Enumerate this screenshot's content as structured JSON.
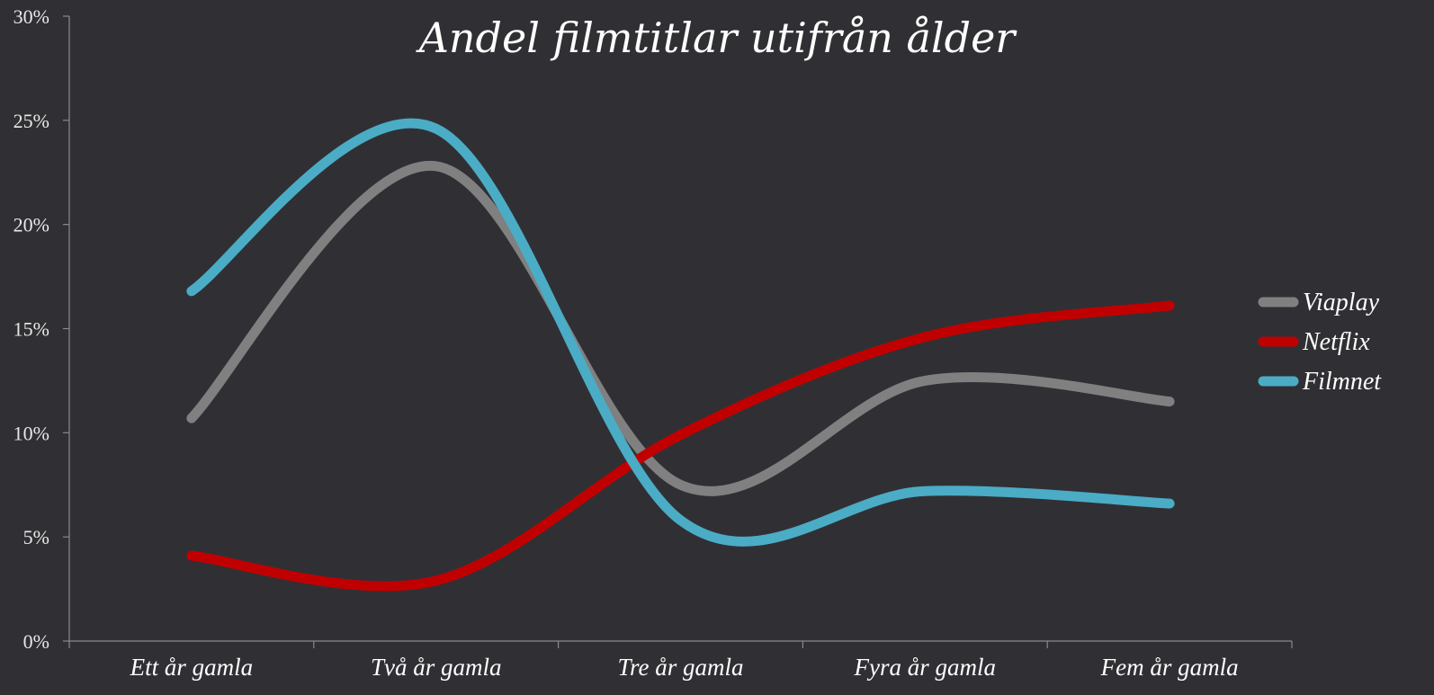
{
  "chart_data": {
    "type": "line",
    "title": "Andel filmtitlar utifrån ålder",
    "xlabel": "",
    "ylabel": "",
    "categories": [
      "Ett år gamla",
      "Två år gamla",
      "Tre år gamla",
      "Fyra år gamla",
      "Fem år gamla"
    ],
    "ylim": [
      0,
      30
    ],
    "yticks": [
      "0%",
      "5%",
      "10%",
      "15%",
      "20%",
      "25%",
      "30%"
    ],
    "ytick_values": [
      0,
      5,
      10,
      15,
      20,
      25,
      30
    ],
    "smooth": true,
    "grid": false,
    "legend_position": "right",
    "series": [
      {
        "name": "Viaplay",
        "color": "#808080",
        "values": [
          10.7,
          22.8,
          7.5,
          12.5,
          11.5
        ]
      },
      {
        "name": "Netflix",
        "color": "#c00000",
        "values": [
          4.1,
          2.9,
          9.9,
          14.6,
          16.1
        ]
      },
      {
        "name": "Filmnet",
        "color": "#4bacc6",
        "values": [
          16.8,
          24.6,
          5.8,
          7.2,
          6.6
        ]
      }
    ]
  }
}
